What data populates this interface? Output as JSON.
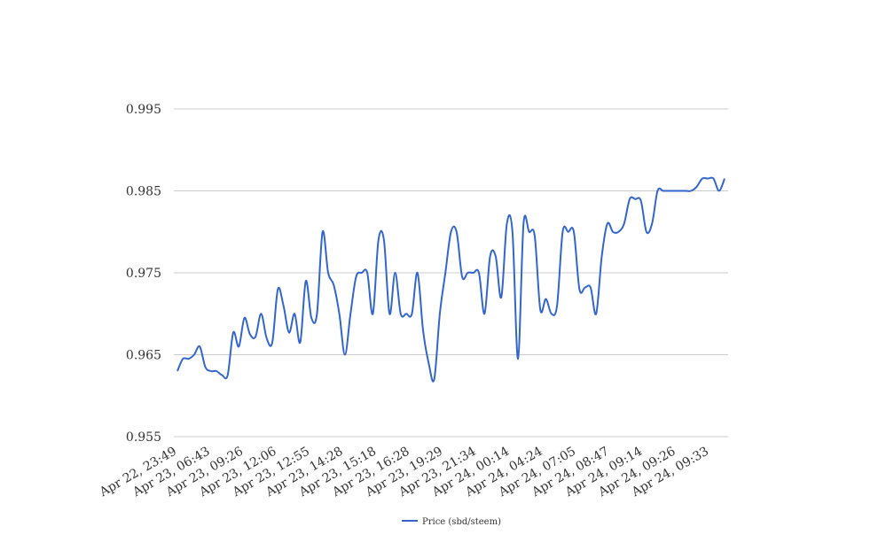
{
  "chart_data": {
    "type": "line",
    "title": "",
    "xlabel": "",
    "ylabel": "",
    "ylim": [
      0.955,
      0.999
    ],
    "yticks": [
      "0.955",
      "0.965",
      "0.975",
      "0.985",
      "0.995"
    ],
    "grid": true,
    "legend_position": "bottom",
    "x_tick_labels": [
      "Apr 22, 23:49",
      "Apr 23, 06:43",
      "Apr 23, 09:26",
      "Apr 23, 12:06",
      "Apr 23, 12:55",
      "Apr 23, 14:28",
      "Apr 23, 15:18",
      "Apr 23, 16:28",
      "Apr 23, 19:29",
      "Apr 23, 21:34",
      "Apr 24, 00:14",
      "Apr 24, 04:24",
      "Apr 24, 07:05",
      "Apr 24, 08:47",
      "Apr 24, 09:14",
      "Apr 24, 09:26",
      "Apr 24, 09:33"
    ],
    "series": [
      {
        "name": "Price (sbd/steem)",
        "color": "#3366cc",
        "values": [
          0.963,
          0.9645,
          0.9645,
          0.965,
          0.966,
          0.9635,
          0.963,
          0.963,
          0.9625,
          0.9625,
          0.9677,
          0.966,
          0.9695,
          0.9675,
          0.9672,
          0.97,
          0.967,
          0.9665,
          0.973,
          0.971,
          0.9677,
          0.97,
          0.9665,
          0.974,
          0.9695,
          0.97,
          0.98,
          0.975,
          0.9735,
          0.97,
          0.965,
          0.97,
          0.9745,
          0.975,
          0.975,
          0.97,
          0.979,
          0.979,
          0.97,
          0.975,
          0.97,
          0.97,
          0.97,
          0.975,
          0.968,
          0.964,
          0.962,
          0.97,
          0.975,
          0.98,
          0.98,
          0.9745,
          0.975,
          0.975,
          0.975,
          0.97,
          0.977,
          0.977,
          0.972,
          0.981,
          0.98,
          0.9645,
          0.981,
          0.98,
          0.9795,
          0.9705,
          0.9718,
          0.97,
          0.971,
          0.98,
          0.98,
          0.98,
          0.973,
          0.9732,
          0.9732,
          0.97,
          0.977,
          0.981,
          0.98,
          0.98,
          0.981,
          0.984,
          0.984,
          0.9838,
          0.98,
          0.981,
          0.985,
          0.985,
          0.985,
          0.985,
          0.985,
          0.985,
          0.985,
          0.9855,
          0.9865,
          0.9865,
          0.9865,
          0.985,
          0.9865
        ]
      }
    ]
  }
}
